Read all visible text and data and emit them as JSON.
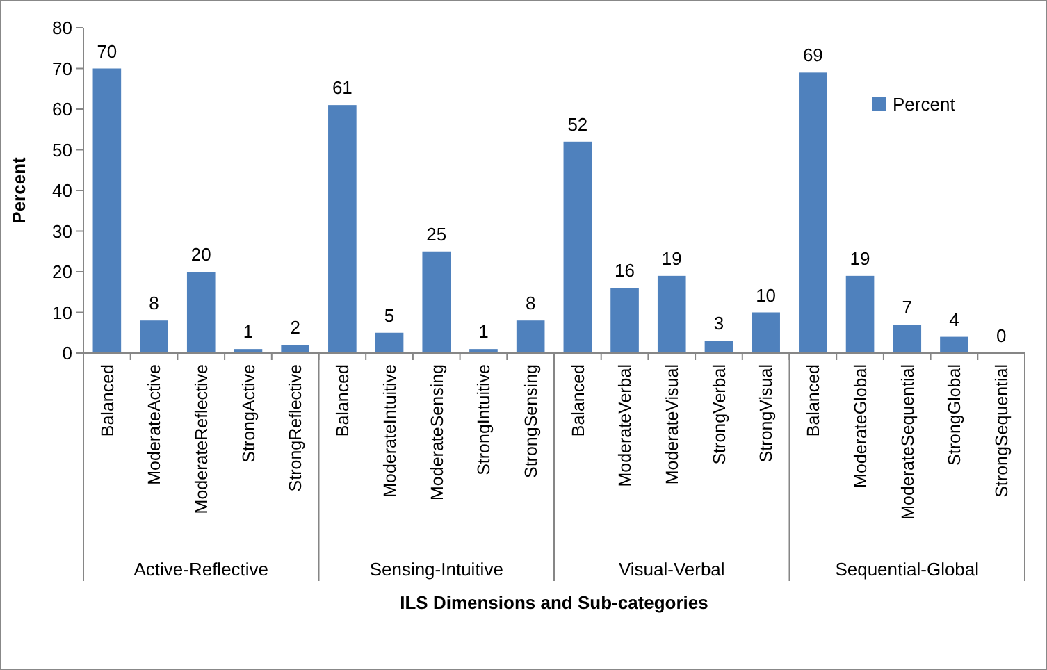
{
  "chart_data": {
    "type": "bar",
    "xlabel": "ILS Dimensions and Sub-categories",
    "ylabel": "Percent",
    "categories": [
      "Balanced",
      "ModerateActive",
      "ModerateReflective",
      "StrongActive",
      "StrongReflective",
      "Balanced",
      "ModerateIntuitive",
      "ModerateSensing",
      "StrongIntuitive",
      "StrongSensing",
      "Balanced",
      "ModerateVerbal",
      "ModerateVisual",
      "StrongVerbal",
      "StrongVisual",
      "Balanced",
      "ModerateGlobal",
      "ModerateSequential",
      "StrongGlobal",
      "StrongSequential"
    ],
    "series": [
      {
        "name": "Percent",
        "color": "#4f81bd",
        "values": [
          70,
          8,
          20,
          1,
          2,
          61,
          5,
          25,
          1,
          8,
          52,
          16,
          19,
          3,
          10,
          69,
          19,
          7,
          4,
          0
        ]
      }
    ],
    "annotations": [
      "Active-Reflective",
      "Sensing-Intuitive",
      "Visual-Verbal",
      "Sequential-Global"
    ],
    "ylim": [
      0,
      80
    ],
    "yticks": [
      0,
      10,
      20,
      30,
      40,
      50,
      60,
      70,
      80
    ],
    "data_labels": true,
    "legend": "top right",
    "grid": false
  }
}
